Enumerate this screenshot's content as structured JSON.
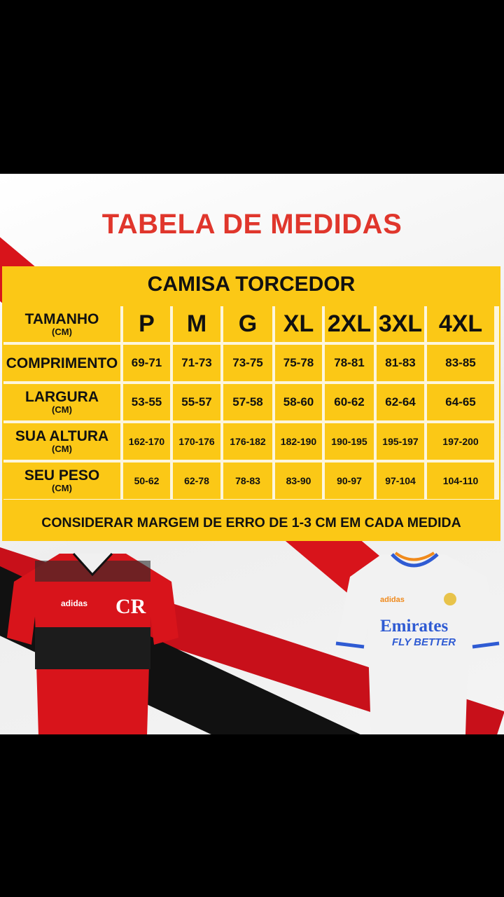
{
  "title": "TABELA DE MEDIDAS",
  "table": {
    "caption": "CAMISA TORCEDOR",
    "header_label": "TAMANHO",
    "header_unit": "(CM)",
    "sizes": [
      "P",
      "M",
      "G",
      "XL",
      "2XL",
      "3XL",
      "4XL"
    ],
    "rows": [
      {
        "label": "COMPRIMENTO",
        "unit": "",
        "values": [
          "69-71",
          "71-73",
          "73-75",
          "75-78",
          "78-81",
          "81-83",
          "83-85"
        ]
      },
      {
        "label": "LARGURA",
        "unit": "(CM)",
        "values": [
          "53-55",
          "55-57",
          "57-58",
          "58-60",
          "60-62",
          "62-64",
          "64-65"
        ]
      },
      {
        "label": "SUA ALTURA",
        "unit": "(CM)",
        "values": [
          "162-170",
          "170-176",
          "176-182",
          "182-190",
          "190-195",
          "195-197",
          "197-200"
        ]
      },
      {
        "label": "SEU PESO",
        "unit": "(CM)",
        "values": [
          "50-62",
          "62-78",
          "78-83",
          "83-90",
          "90-97",
          "97-104",
          "104-110"
        ]
      }
    ],
    "footer": "CONSIDERAR MARGEM DE ERRO DE 1-3 CM EM CADA MEDIDA"
  },
  "jerseys": {
    "left": {
      "brand": "adidas",
      "crest": "CRF",
      "colors": [
        "#d8141b",
        "#1a1a1a"
      ]
    },
    "right": {
      "brand": "adidas",
      "sponsor": "Emirates",
      "sponsor_tagline": "FLY BETTER",
      "colors": [
        "#f2f2f2",
        "#2f5bd3",
        "#f08a1c"
      ]
    }
  },
  "colors": {
    "title": "#e0362c",
    "table": "#fbc816",
    "stripe": "#d8141b"
  }
}
